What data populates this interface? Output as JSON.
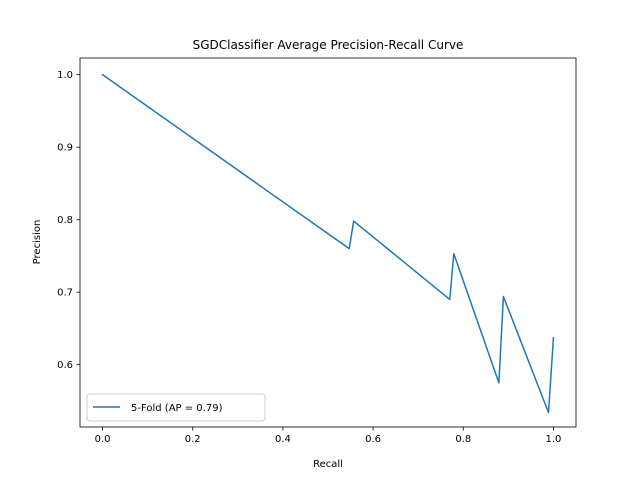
{
  "chart_data": {
    "type": "line",
    "title": "SGDClassifier Average Precision-Recall Curve",
    "xlabel": "Recall",
    "ylabel": "Precision",
    "xlim": [
      -0.05,
      1.05
    ],
    "ylim": [
      0.514,
      1.023
    ],
    "xticks": [
      0.0,
      0.2,
      0.4,
      0.6,
      0.8,
      1.0
    ],
    "xtick_labels": [
      "0.0",
      "0.2",
      "0.4",
      "0.6",
      "0.8",
      "1.0"
    ],
    "yticks": [
      0.6,
      0.7,
      0.8,
      0.9,
      1.0
    ],
    "ytick_labels": [
      "0.6",
      "0.7",
      "0.8",
      "0.9",
      "1.0"
    ],
    "grid": false,
    "legend_position": "lower-left",
    "series": [
      {
        "name": "5-Fold (AP = 0.79)",
        "color": "#1f77b4",
        "x": [
          0.0,
          0.547,
          0.557,
          0.77,
          0.779,
          0.879,
          0.889,
          0.989,
          1.0
        ],
        "y": [
          1.0,
          0.76,
          0.798,
          0.69,
          0.753,
          0.575,
          0.694,
          0.534,
          0.637
        ]
      }
    ]
  }
}
